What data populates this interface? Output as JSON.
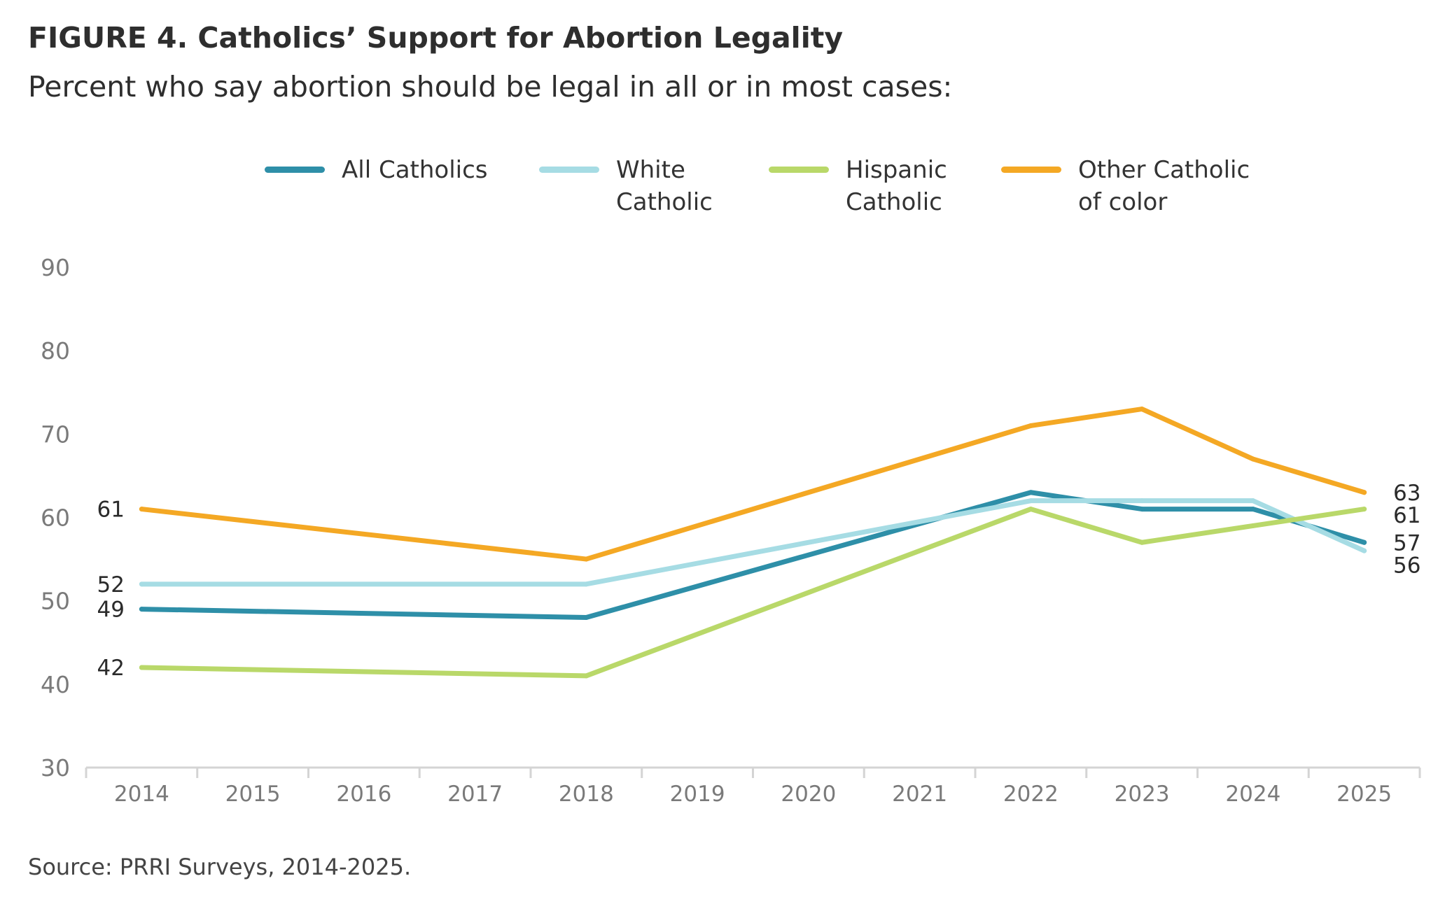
{
  "title": "FIGURE 4. Catholics’ Support for Abortion Legality",
  "subtitle": "Percent who say abortion should be legal in all or in most cases:",
  "source": "Source: PRRI Surveys, 2014-2025.",
  "legend": [
    {
      "label": "All Catholics",
      "color": "#2e8fa8"
    },
    {
      "label": "White\nCatholic",
      "color": "#a6dce4"
    },
    {
      "label": "Hispanic\nCatholic",
      "color": "#b9d869"
    },
    {
      "label": "Other Catholic\nof color",
      "color": "#f4a824"
    }
  ],
  "chart_data": {
    "type": "line",
    "x": [
      "2014",
      "2015",
      "2016",
      "2017",
      "2018",
      "2019",
      "2020",
      "2021",
      "2022",
      "2023",
      "2024",
      "2025"
    ],
    "ylim": [
      30,
      90
    ],
    "yticks": [
      30,
      40,
      50,
      60,
      70,
      80,
      90
    ],
    "grid": false,
    "legend_position": "top",
    "series": [
      {
        "name": "All Catholics",
        "color": "#2e8fa8",
        "points": [
          {
            "x": "2014",
            "y": 49
          },
          {
            "x": "2018",
            "y": 48
          },
          {
            "x": "2022",
            "y": 63
          },
          {
            "x": "2023",
            "y": 61
          },
          {
            "x": "2024",
            "y": 61
          },
          {
            "x": "2025",
            "y": 57
          }
        ],
        "labels": {
          "start": "49",
          "end": "57"
        }
      },
      {
        "name": "White Catholic",
        "color": "#a6dce4",
        "points": [
          {
            "x": "2014",
            "y": 52
          },
          {
            "x": "2018",
            "y": 52
          },
          {
            "x": "2022",
            "y": 62
          },
          {
            "x": "2023",
            "y": 62
          },
          {
            "x": "2024",
            "y": 62
          },
          {
            "x": "2025",
            "y": 56
          }
        ],
        "labels": {
          "start": "52",
          "end": "56"
        }
      },
      {
        "name": "Hispanic Catholic",
        "color": "#b9d869",
        "points": [
          {
            "x": "2014",
            "y": 42
          },
          {
            "x": "2018",
            "y": 41
          },
          {
            "x": "2022",
            "y": 61
          },
          {
            "x": "2023",
            "y": 57
          },
          {
            "x": "2024",
            "y": 59
          },
          {
            "x": "2025",
            "y": 61
          }
        ],
        "labels": {
          "start": "42",
          "end": "61"
        }
      },
      {
        "name": "Other Catholic of color",
        "color": "#f4a824",
        "points": [
          {
            "x": "2014",
            "y": 61
          },
          {
            "x": "2018",
            "y": 55
          },
          {
            "x": "2022",
            "y": 71
          },
          {
            "x": "2023",
            "y": 73
          },
          {
            "x": "2024",
            "y": 67
          },
          {
            "x": "2025",
            "y": 63
          }
        ],
        "labels": {
          "start": "61",
          "end": "63"
        }
      }
    ]
  }
}
